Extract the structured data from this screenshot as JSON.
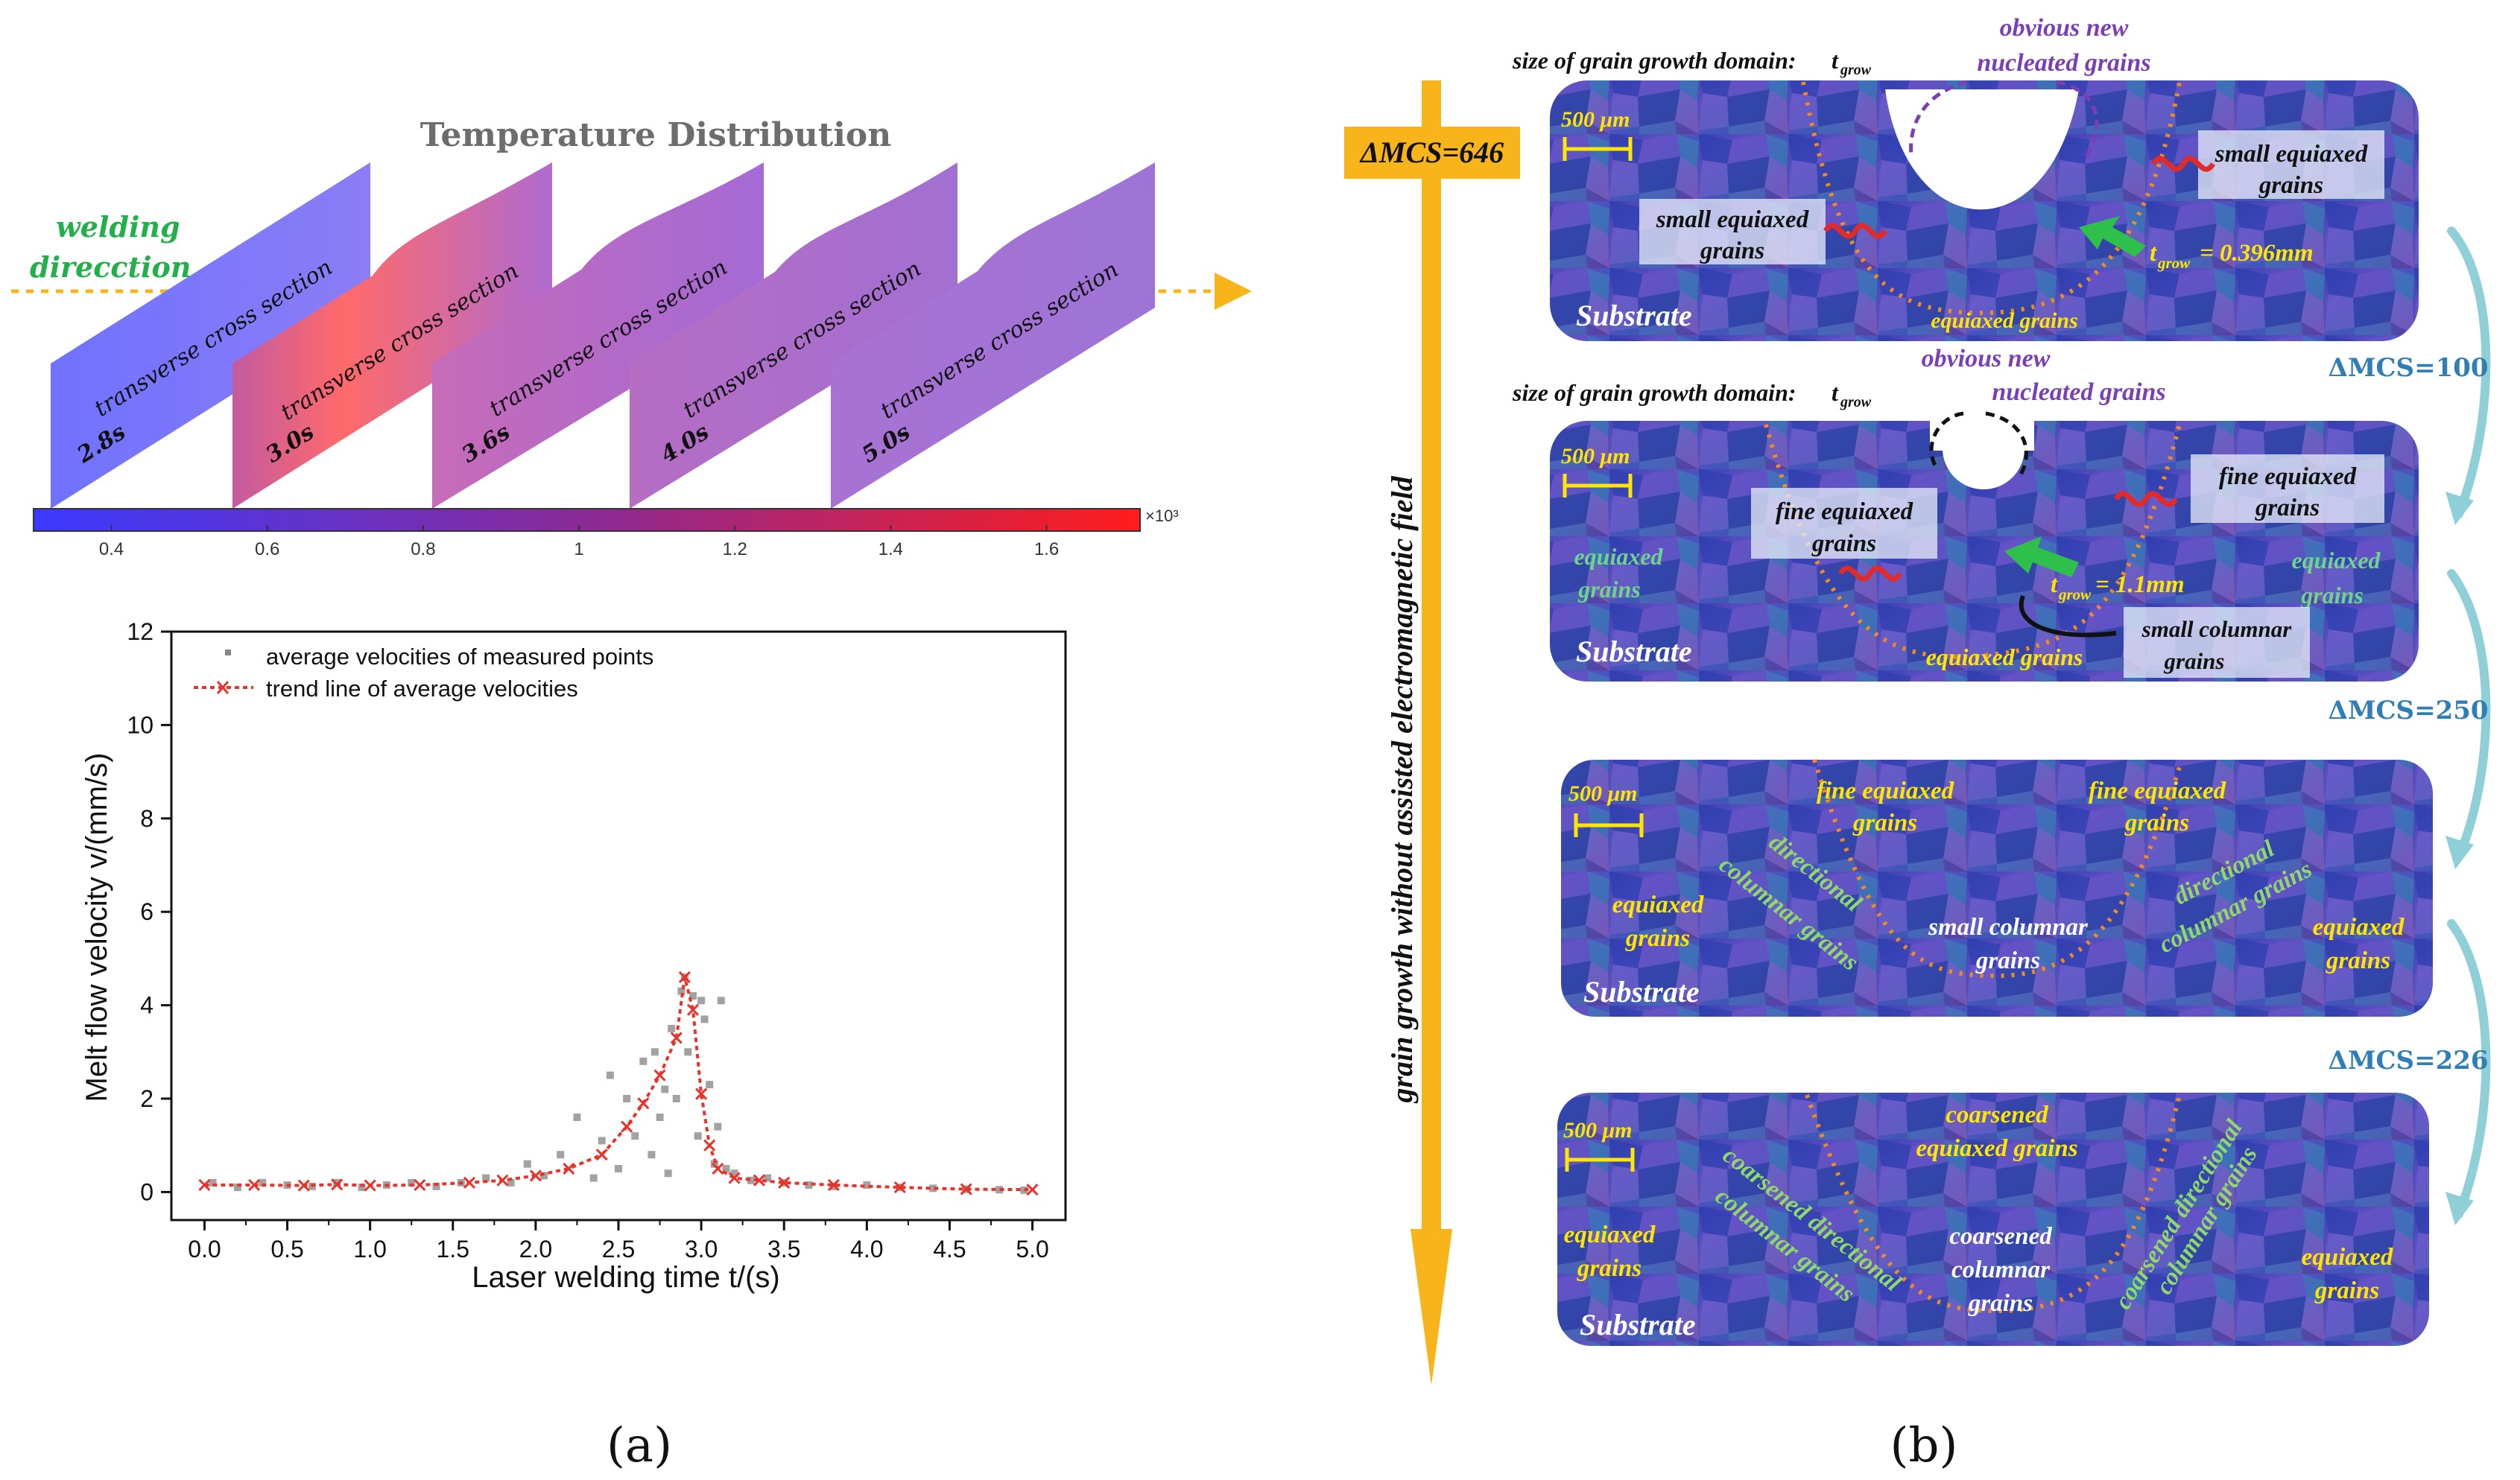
{
  "panel_a": {
    "label": "(a)",
    "temperature": {
      "title": "Temperature Distribution",
      "direction_label_1": "welding",
      "direction_label_2": "direcction",
      "section_label": "transverse cross section",
      "times": [
        "2.8s",
        "3.0s",
        "3.6s",
        "4.0s",
        "5.0s"
      ],
      "colorbar_ticks": [
        "0.4",
        "0.6",
        "0.8",
        "1",
        "1.2",
        "1.4",
        "1.6"
      ],
      "colorbar_exponent": "×10³",
      "colors": {
        "low": "#3b3bff",
        "mid": "#7a2b9c",
        "high": "#ff1e1e"
      }
    }
  },
  "chart_data": {
    "type": "scatter",
    "title": "",
    "xlabel": "Laser welding time t/(s)",
    "ylabel": "Melt flow velocity v/(mm/s)",
    "xlim": [
      -0.2,
      5.2
    ],
    "ylim": [
      -0.6,
      12
    ],
    "xticks": [
      "0.0",
      "0.5",
      "1.0",
      "1.5",
      "2.0",
      "2.5",
      "3.0",
      "3.5",
      "4.0",
      "4.5",
      "5.0"
    ],
    "yticks": [
      "0",
      "2",
      "4",
      "6",
      "8",
      "10",
      "12"
    ],
    "legend": [
      "average velocities of measured points",
      "trend line of average velocities"
    ],
    "series": [
      {
        "name": "trend line of average velocities",
        "x": [
          0.0,
          0.3,
          0.6,
          0.8,
          1.0,
          1.3,
          1.6,
          1.8,
          2.0,
          2.2,
          2.4,
          2.55,
          2.65,
          2.75,
          2.85,
          2.9,
          2.95,
          3.0,
          3.05,
          3.1,
          3.2,
          3.35,
          3.5,
          3.8,
          4.2,
          4.6,
          5.0
        ],
        "values": [
          0.15,
          0.15,
          0.14,
          0.16,
          0.14,
          0.15,
          0.2,
          0.25,
          0.35,
          0.5,
          0.8,
          1.4,
          1.9,
          2.5,
          3.3,
          4.6,
          3.9,
          2.1,
          1.0,
          0.5,
          0.3,
          0.25,
          0.2,
          0.15,
          0.1,
          0.06,
          0.05
        ]
      },
      {
        "name": "average velocities of measured points",
        "x": [
          0.05,
          0.2,
          0.35,
          0.5,
          0.65,
          0.8,
          0.95,
          1.1,
          1.25,
          1.4,
          1.55,
          1.7,
          1.85,
          1.95,
          2.05,
          2.15,
          2.25,
          2.35,
          2.4,
          2.45,
          2.5,
          2.55,
          2.6,
          2.65,
          2.7,
          2.72,
          2.75,
          2.78,
          2.8,
          2.82,
          2.85,
          2.88,
          2.9,
          2.92,
          2.95,
          2.98,
          3.0,
          3.02,
          3.05,
          3.08,
          3.1,
          3.12,
          3.15,
          3.2,
          3.3,
          3.4,
          3.5,
          3.65,
          3.8,
          4.0,
          4.2,
          4.4,
          4.6,
          4.8,
          4.95
        ],
        "values": [
          0.2,
          0.1,
          0.2,
          0.15,
          0.12,
          0.2,
          0.1,
          0.15,
          0.2,
          0.12,
          0.2,
          0.3,
          0.2,
          0.6,
          0.35,
          0.8,
          1.6,
          0.3,
          1.1,
          2.5,
          0.5,
          2.0,
          1.2,
          2.8,
          0.8,
          3.0,
          1.6,
          2.2,
          0.4,
          3.5,
          2.0,
          4.3,
          4.6,
          3.0,
          4.2,
          1.2,
          4.1,
          3.7,
          2.3,
          0.6,
          1.4,
          4.1,
          0.5,
          0.4,
          0.25,
          0.3,
          0.2,
          0.15,
          0.12,
          0.15,
          0.1,
          0.08,
          0.06,
          0.05,
          0.04
        ]
      }
    ]
  },
  "panel_b": {
    "label": "(b)",
    "axis_label": "grain growth without assisted  electromagnetic field",
    "total_mcs": "ΔMCS=646",
    "scale": "500 μm",
    "step_labels": [
      "ΔMCS=100",
      "ΔMCS=250",
      "ΔMCS=226"
    ],
    "image1": {
      "header": "size of grain growth domain:",
      "header_symbol": "t",
      "header_sub": "grow",
      "nucleated_1": "obvious new",
      "nucleated_2": "nucleated grains",
      "left_box_1": "small equiaxed",
      "left_box_2": "grains",
      "right_box_1": "small equiaxed",
      "right_box_2": "grains",
      "tgrow_symbol": "t",
      "tgrow_sub": "grow",
      "tgrow_value": "= 0.396mm",
      "bottom": "equiaxed grains",
      "substrate": "Substrate"
    },
    "image2": {
      "header": "size of grain growth domain:",
      "header_symbol": "t",
      "header_sub": "grow",
      "nucleated_1": "obvious new",
      "nucleated_2": "nucleated grains",
      "left_box_1": "fine equiaxed",
      "left_box_2": "grains",
      "right_box_1": "fine equiaxed",
      "right_box_2": "grains",
      "left_equiaxed_1": "equiaxed",
      "left_equiaxed_2": "grains",
      "right_equiaxed_1": "equiaxed",
      "right_equiaxed_2": "grains",
      "tgrow_symbol": "t",
      "tgrow_sub": "grow",
      "tgrow_value": "= 1.1mm",
      "bottom": "equiaxed grains",
      "columnar_1": "small columnar",
      "columnar_2": "grains",
      "substrate": "Substrate"
    },
    "image3": {
      "fine_left_1": "fine equiaxed",
      "fine_left_2": "grains",
      "fine_right_1": "fine equiaxed",
      "fine_right_2": "grains",
      "dir_left_1": "directional",
      "dir_left_2": "columnar grains",
      "dir_right_1": "directional",
      "dir_right_2": "columnar grains",
      "eq_left_1": "equiaxed",
      "eq_left_2": "grains",
      "eq_right_1": "equiaxed",
      "eq_right_2": "grains",
      "center_1": "small columnar",
      "center_2": "grains",
      "substrate": "Substrate"
    },
    "image4": {
      "top_1": "coarsened",
      "top_2": "equiaxed grains",
      "dir_left_1": "coarsened directional",
      "dir_left_2": "columnar grains",
      "dir_right_1": "coarsened directional",
      "dir_right_2": "columnar grains",
      "eq_left_1": "equiaxed",
      "eq_left_2": "grains",
      "eq_right_1": "equiaxed",
      "eq_right_2": "grains",
      "center_1": "coarsened",
      "center_2": "columnar",
      "center_3": "grains",
      "substrate": "Substrate"
    }
  }
}
